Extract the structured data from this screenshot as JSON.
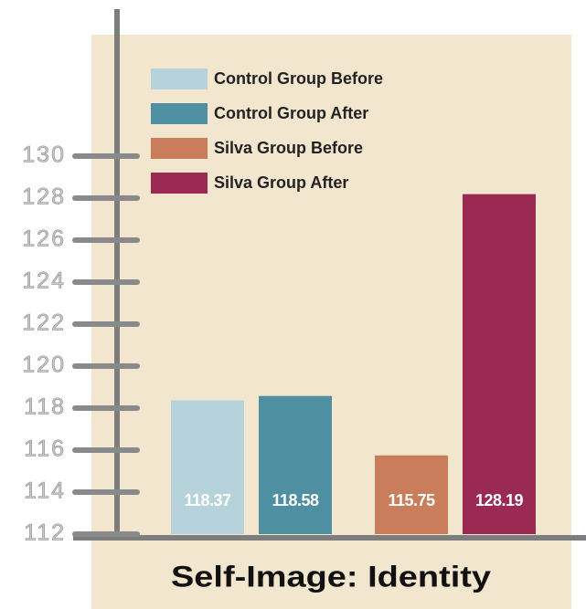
{
  "chart_data": {
    "type": "bar",
    "title": "Self-Image: Identity",
    "series": [
      {
        "name": "Control Group Before",
        "color": "#b6d3dc",
        "values": [
          118.37
        ]
      },
      {
        "name": "Control Group After",
        "color": "#4e8fa1",
        "values": [
          118.58
        ]
      },
      {
        "name": "Silva Group Before",
        "color": "#c97d5a",
        "values": [
          115.75
        ]
      },
      {
        "name": "Silva Group After",
        "color": "#9a2a51",
        "values": [
          128.19
        ]
      }
    ],
    "ylim": [
      112,
      137
    ],
    "yticks": [
      112,
      114,
      116,
      118,
      120,
      122,
      124,
      126,
      128,
      130
    ]
  }
}
